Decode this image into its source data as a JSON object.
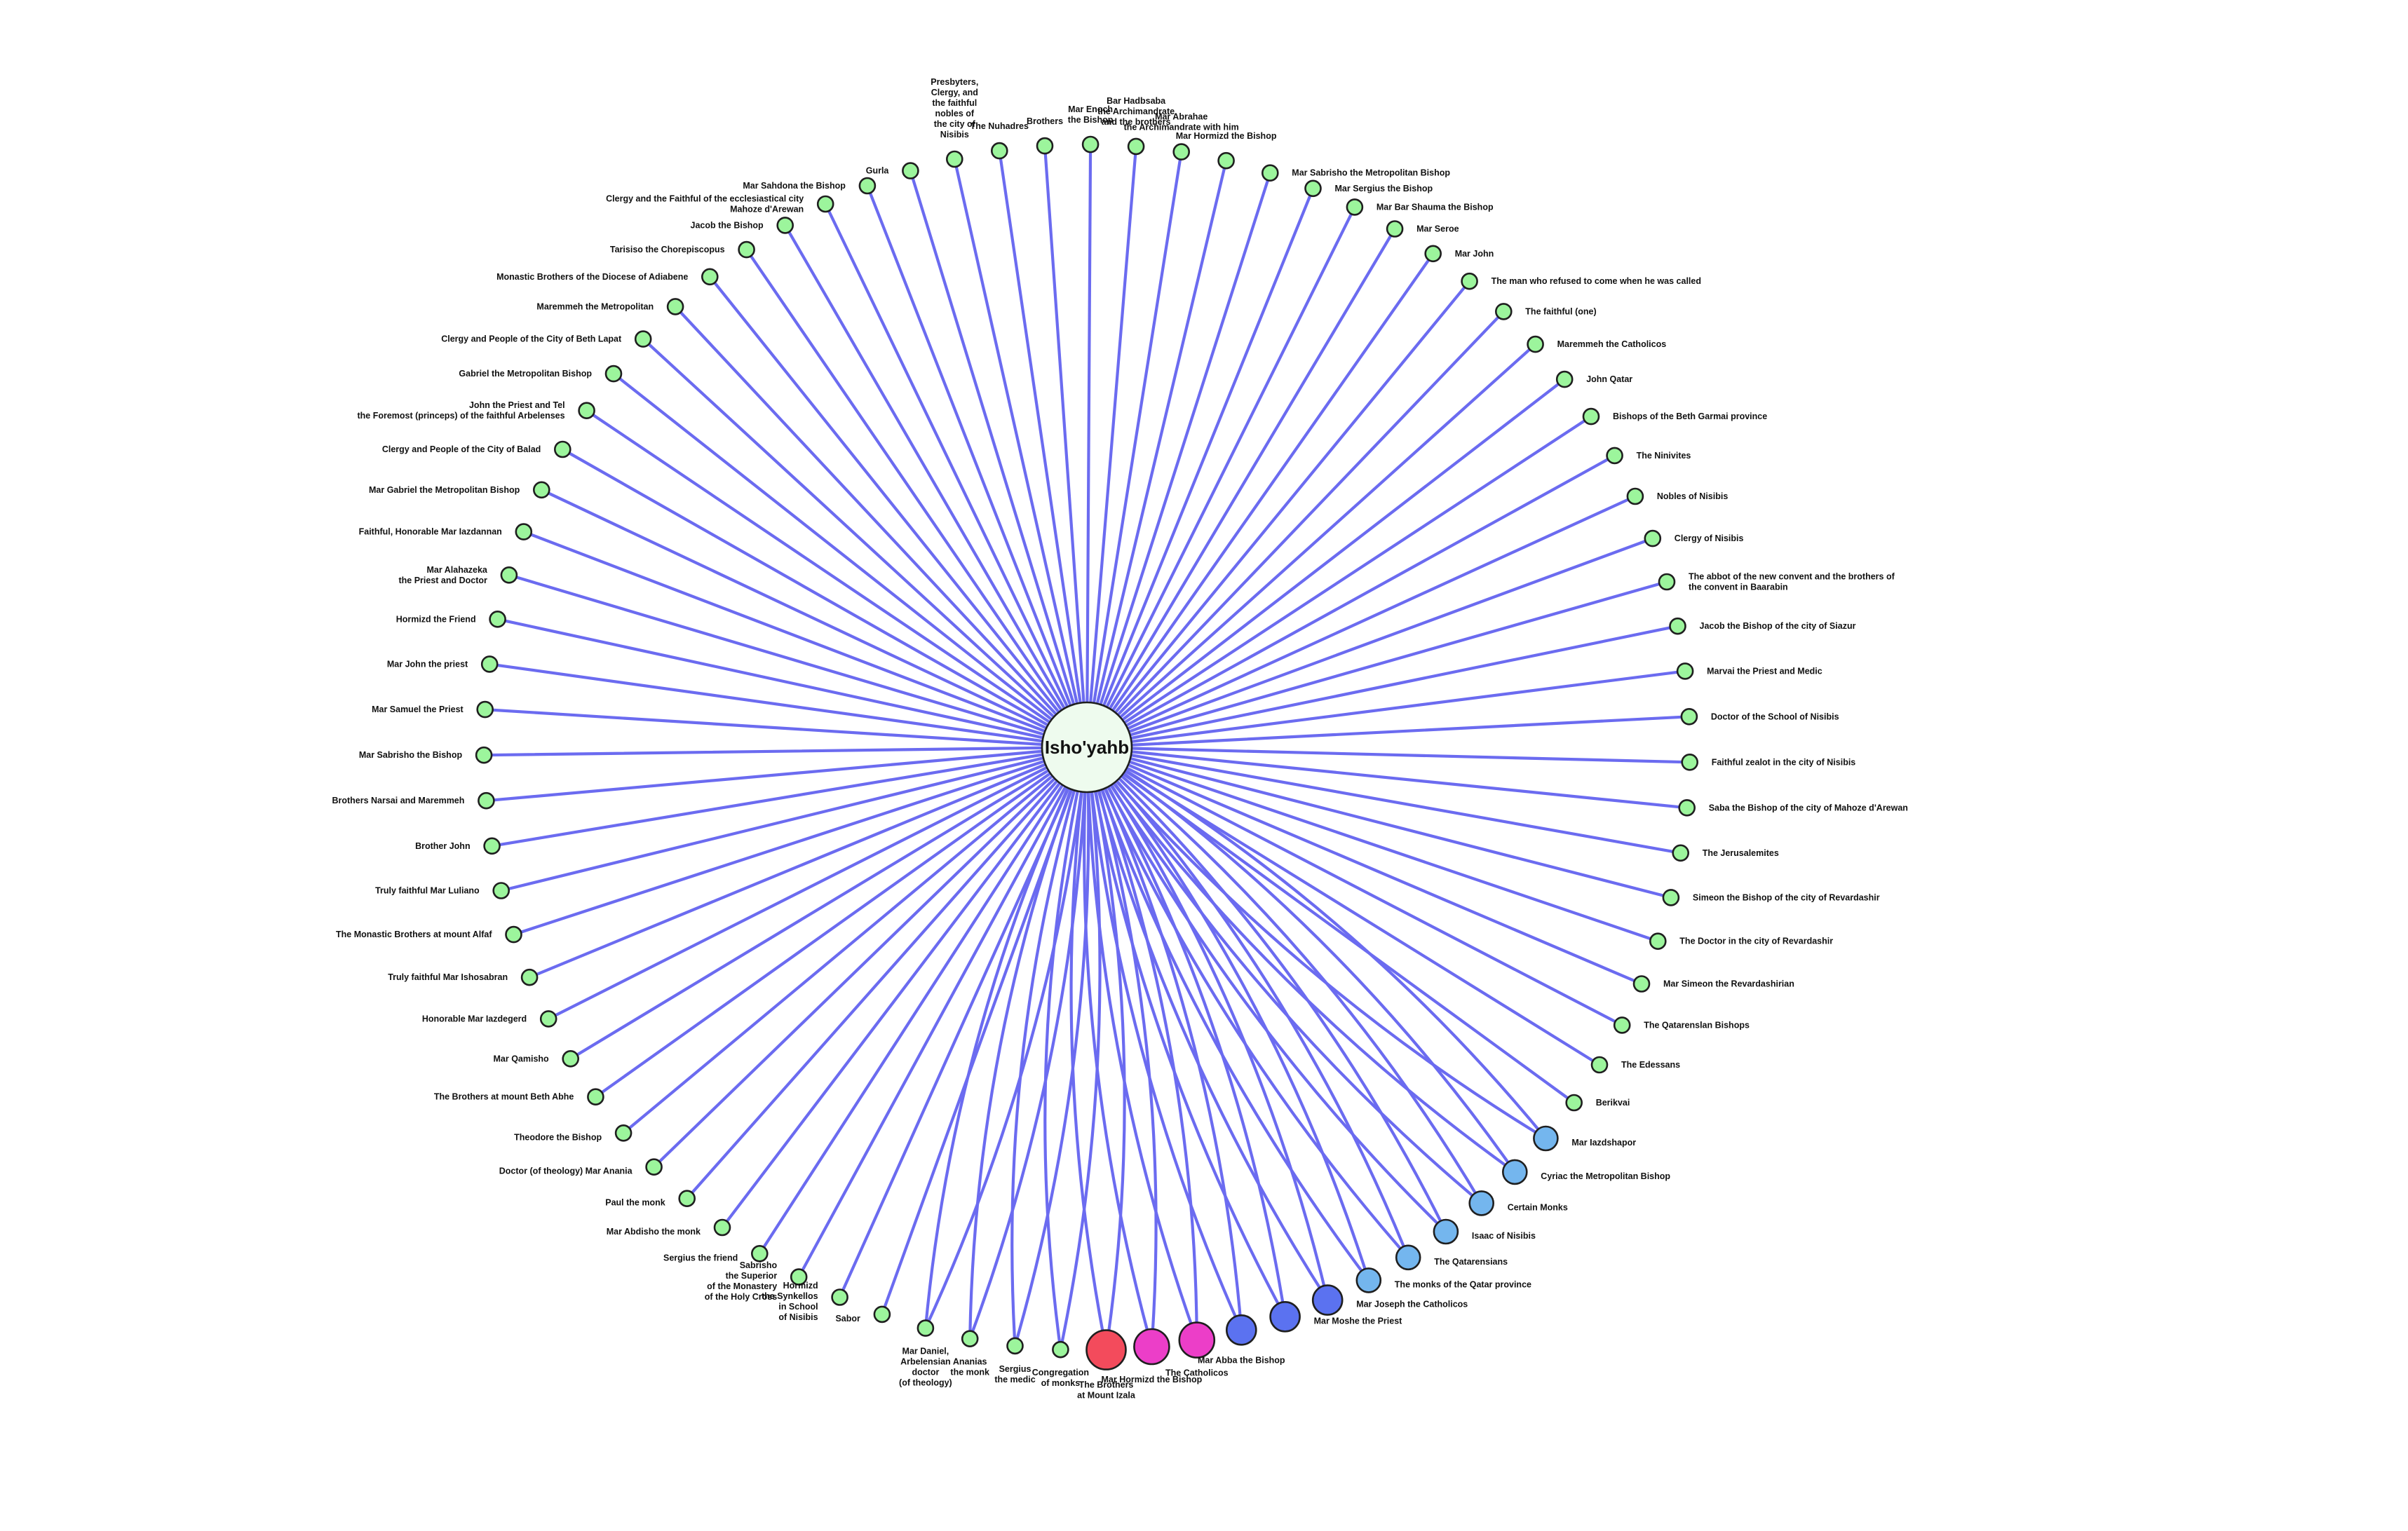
{
  "diagram": {
    "type": "radial-network",
    "colors": {
      "edge": "#6b6bf0",
      "center": "#eefbee",
      "green": "#9cf59c",
      "light_blue": "#74b6ee",
      "blue": "#5b72f0",
      "magenta": "#ec3ec8",
      "red": "#f34b5c"
    },
    "center": {
      "label": "Isho'yahb"
    },
    "nodes": [
      {
        "label": "Brothers",
        "color": "green",
        "lines": [
          "Brothers"
        ]
      },
      {
        "label": "Mar Enoch the Bishop",
        "color": "green",
        "lines": [
          "Mar Enoch",
          "the Bishop"
        ]
      },
      {
        "label": "Bar Hadbsaba the Archimandrate and the brothers",
        "color": "green",
        "lines": [
          "Bar Hadbsaba",
          "the Archimandrate",
          "and the brothers"
        ]
      },
      {
        "label": "Mar Abrahae the Archimandrate with him",
        "color": "green",
        "lines": [
          "Mar Abrahae",
          "the Archimandrate with him"
        ]
      },
      {
        "label": "Mar Hormizd the Bishop",
        "color": "green",
        "lines": [
          "Mar Hormizd the Bishop"
        ]
      },
      {
        "label": "Mar Sabrisho the Metropolitan Bishop",
        "color": "green",
        "lines": [
          "Mar Sabrisho the Metropolitan Bishop"
        ]
      },
      {
        "label": "Mar Sergius the Bishop",
        "color": "green",
        "lines": [
          "Mar Sergius the Bishop"
        ]
      },
      {
        "label": "Mar Bar Shauma the Bishop",
        "color": "green",
        "lines": [
          "Mar Bar Shauma the Bishop"
        ]
      },
      {
        "label": "Mar Seroe",
        "color": "green",
        "lines": [
          "Mar Seroe"
        ]
      },
      {
        "label": "Mar John",
        "color": "green",
        "lines": [
          "Mar John"
        ]
      },
      {
        "label": "The man who refused to come when he was called",
        "color": "green",
        "lines": [
          "The man who refused to come when he was called"
        ]
      },
      {
        "label": "The faithful (one)",
        "color": "green",
        "lines": [
          "The faithful (one)"
        ]
      },
      {
        "label": "Maremmeh the Catholicos",
        "color": "green",
        "lines": [
          "Maremmeh the Catholicos"
        ]
      },
      {
        "label": "John Qatar",
        "color": "green",
        "lines": [
          "John Qatar"
        ]
      },
      {
        "label": "Bishops of the Beth Garmai province",
        "color": "green",
        "lines": [
          "Bishops of the Beth Garmai province"
        ]
      },
      {
        "label": "The Ninivites",
        "color": "green",
        "lines": [
          "The Ninivites"
        ]
      },
      {
        "label": "Nobles of Nisibis",
        "color": "green",
        "lines": [
          "Nobles of Nisibis"
        ]
      },
      {
        "label": "Clergy of Nisibis",
        "color": "green",
        "lines": [
          "Clergy of Nisibis"
        ]
      },
      {
        "label": "The abbot of the new convent and the brothers of the convent in Baarabin",
        "color": "green",
        "lines": [
          "The abbot of the new convent and the brothers of",
          "the convent in Baarabin"
        ]
      },
      {
        "label": "Jacob the Bishop of the city of Siazur",
        "color": "green",
        "lines": [
          "Jacob the Bishop of the city of Siazur"
        ]
      },
      {
        "label": "Marvai the Priest and Medic",
        "color": "green",
        "lines": [
          "Marvai the Priest and Medic"
        ]
      },
      {
        "label": "Doctor of the School of Nisibis",
        "color": "green",
        "lines": [
          "Doctor of the School of Nisibis"
        ]
      },
      {
        "label": "Faithful zealot in the city of Nisibis",
        "color": "green",
        "lines": [
          "Faithful zealot in the city of Nisibis"
        ]
      },
      {
        "label": "Saba the Bishop of the city of Mahoze d'Arewan",
        "color": "green",
        "lines": [
          "Saba the Bishop of the city of Mahoze d'Arewan"
        ]
      },
      {
        "label": "The Jerusalemites",
        "color": "green",
        "lines": [
          "The Jerusalemites"
        ]
      },
      {
        "label": "Simeon the Bishop of the city of Revardashir",
        "color": "green",
        "lines": [
          "Simeon the Bishop of the city of Revardashir"
        ]
      },
      {
        "label": "The Doctor in the city of Revardashir",
        "color": "green",
        "lines": [
          "The Doctor in the city of Revardashir"
        ]
      },
      {
        "label": "Mar Simeon the Revardashirian",
        "color": "green",
        "lines": [
          "Mar Simeon the Revardashirian"
        ]
      },
      {
        "label": "The Qatarenslan Bishops",
        "color": "green",
        "lines": [
          "The Qatarenslan Bishops"
        ]
      },
      {
        "label": "The Edessans",
        "color": "green",
        "lines": [
          "The Edessans"
        ]
      },
      {
        "label": "Berikvai",
        "color": "green",
        "lines": [
          "Berikvai"
        ]
      },
      {
        "label": "Mar Iazdshapor",
        "color": "light_blue",
        "lines": [
          "Mar Iazdshapor"
        ]
      },
      {
        "label": "Cyriac the Metropolitan Bishop",
        "color": "light_blue",
        "lines": [
          "Cyriac the Metropolitan Bishop"
        ]
      },
      {
        "label": "Certain Monks",
        "color": "light_blue",
        "lines": [
          "Certain Monks"
        ]
      },
      {
        "label": "Isaac of Nisibis",
        "color": "light_blue",
        "lines": [
          "Isaac of Nisibis"
        ]
      },
      {
        "label": "The Qatarensians",
        "color": "light_blue",
        "lines": [
          "The Qatarensians"
        ]
      },
      {
        "label": "The monks of the Qatar province",
        "color": "light_blue",
        "lines": [
          "The monks of the Qatar province"
        ]
      },
      {
        "label": "Mar Joseph the Catholicos",
        "color": "blue",
        "lines": [
          "Mar Joseph the Catholicos"
        ]
      },
      {
        "label": "Mar Moshe the Priest",
        "color": "blue",
        "lines": [
          "Mar Moshe the Priest"
        ]
      },
      {
        "label": "Mar Abba the Bishop",
        "color": "blue",
        "lines": [
          "Mar Abba the Bishop"
        ]
      },
      {
        "label": "The Catholicos",
        "color": "magenta",
        "lines": [
          "The Catholicos"
        ]
      },
      {
        "label": "Mar Hormizd the Bishop",
        "color": "magenta",
        "lines": [
          "Mar Hormizd the Bishop"
        ]
      },
      {
        "label": "The Brothers at Mount Izala",
        "color": "red",
        "lines": [
          "The Brothers",
          "at Mount Izala"
        ]
      },
      {
        "label": "Congregation of monks",
        "color": "green",
        "lines": [
          "Congregation",
          "of monks"
        ]
      },
      {
        "label": "Sergius the medic",
        "color": "green",
        "lines": [
          "Sergius",
          "the medic"
        ]
      },
      {
        "label": "Ananias the monk",
        "color": "green",
        "lines": [
          "Ananias",
          "the monk"
        ]
      },
      {
        "label": "Mar Daniel, Arbelensian doctor (of theology)",
        "color": "green",
        "lines": [
          "Mar Daniel,",
          "Arbelensian",
          "doctor",
          "(of theology)"
        ]
      },
      {
        "label": "Sabor",
        "color": "green",
        "lines": [
          "Sabor"
        ]
      },
      {
        "label": "Hormizd the Synkellos in School of Nisibis",
        "color": "green",
        "lines": [
          "Hormizd",
          "the Synkellos",
          "in School",
          "of Nisibis"
        ]
      },
      {
        "label": "Sabrisho the Superior of the Monastery of the Holy Cross",
        "color": "green",
        "lines": [
          "Sabrisho",
          "the Superior",
          "of the Monastery",
          "of the Holy Cross"
        ]
      },
      {
        "label": "Sergius the friend",
        "color": "green",
        "lines": [
          "Sergius the friend"
        ]
      },
      {
        "label": "Mar Abdisho the monk",
        "color": "green",
        "lines": [
          "Mar Abdisho the monk"
        ]
      },
      {
        "label": "Paul the monk",
        "color": "green",
        "lines": [
          "Paul the monk"
        ]
      },
      {
        "label": "Doctor (of theology) Mar Anania",
        "color": "green",
        "lines": [
          "Doctor (of theology) Mar Anania"
        ]
      },
      {
        "label": "Theodore the Bishop",
        "color": "green",
        "lines": [
          "Theodore the Bishop"
        ]
      },
      {
        "label": "The Brothers at mount Beth Abhe",
        "color": "green",
        "lines": [
          "The Brothers at mount Beth Abhe"
        ]
      },
      {
        "label": "Mar Qamisho",
        "color": "green",
        "lines": [
          "Mar Qamisho"
        ]
      },
      {
        "label": "Honorable Mar Iazdegerd",
        "color": "green",
        "lines": [
          "Honorable Mar Iazdegerd"
        ]
      },
      {
        "label": "Truly faithful Mar Ishosabran",
        "color": "green",
        "lines": [
          "Truly faithful Mar Ishosabran"
        ]
      },
      {
        "label": "The Monastic Brothers at mount Alfaf",
        "color": "green",
        "lines": [
          "The Monastic Brothers at mount Alfaf"
        ]
      },
      {
        "label": "Truly faithful Mar Luliano",
        "color": "green",
        "lines": [
          "Truly faithful Mar Luliano"
        ]
      },
      {
        "label": "Brother John",
        "color": "green",
        "lines": [
          "Brother John"
        ]
      },
      {
        "label": "Brothers Narsai and Maremmeh",
        "color": "green",
        "lines": [
          "Brothers Narsai and Maremmeh"
        ]
      },
      {
        "label": "Mar Sabrisho the Bishop",
        "color": "green",
        "lines": [
          "Mar Sabrisho the Bishop"
        ]
      },
      {
        "label": "Mar Samuel the Priest",
        "color": "green",
        "lines": [
          "Mar Samuel the Priest"
        ]
      },
      {
        "label": "Mar John the priest",
        "color": "green",
        "lines": [
          "Mar John the priest"
        ]
      },
      {
        "label": "Hormizd the Friend",
        "color": "green",
        "lines": [
          "Hormizd the Friend"
        ]
      },
      {
        "label": "Mar Alahazeka the Priest and Doctor",
        "color": "green",
        "lines": [
          "Mar Alahazeka",
          "the Priest and Doctor"
        ]
      },
      {
        "label": "Faithful, Honorable Mar Iazdannan",
        "color": "green",
        "lines": [
          "Faithful, Honorable Mar Iazdannan"
        ]
      },
      {
        "label": "Mar Gabriel the Metropolitan Bishop",
        "color": "green",
        "lines": [
          "Mar Gabriel the Metropolitan Bishop"
        ]
      },
      {
        "label": "Clergy and People of the City of Balad",
        "color": "green",
        "lines": [
          "Clergy and People of the City of Balad"
        ]
      },
      {
        "label": "John the Priest and Tel the Foremost (princeps) of the faithful Arbelenses",
        "color": "green",
        "lines": [
          "John the Priest and Tel",
          "the Foremost (princeps) of the faithful Arbelenses"
        ]
      },
      {
        "label": "Gabriel the Metropolitan Bishop",
        "color": "green",
        "lines": [
          "Gabriel the Metropolitan Bishop"
        ]
      },
      {
        "label": "Clergy and People of the City of Beth Lapat",
        "color": "green",
        "lines": [
          "Clergy and People of the City of Beth Lapat"
        ]
      },
      {
        "label": "Maremmeh the Metropolitan",
        "color": "green",
        "lines": [
          "Maremmeh the Metropolitan"
        ]
      },
      {
        "label": "Monastic Brothers of the Diocese of Adiabene",
        "color": "green",
        "lines": [
          "Monastic Brothers of the Diocese of Adiabene"
        ]
      },
      {
        "label": "Tarisiso the Chorepiscopus",
        "color": "green",
        "lines": [
          "Tarisiso the Chorepiscopus"
        ]
      },
      {
        "label": "Jacob the Bishop",
        "color": "green",
        "lines": [
          "Jacob the Bishop"
        ]
      },
      {
        "label": "Clergy and the Faithful of the ecclesiastical city Mahoze d'Arewan",
        "color": "green",
        "lines": [
          "Clergy and the Faithful of the ecclesiastical city",
          "Mahoze d'Arewan"
        ]
      },
      {
        "label": "Mar Sahdona the Bishop",
        "color": "green",
        "lines": [
          "Mar Sahdona the Bishop"
        ]
      },
      {
        "label": "Gurla",
        "color": "green",
        "lines": [
          "Gurla"
        ]
      },
      {
        "label": "Presbyters, Clergy, and the faithful nobles of the city of Nisibis",
        "color": "green",
        "lines": [
          "Presbyters,",
          "Clergy, and",
          "the faithful",
          "nobles of",
          "the city of",
          "Nisibis"
        ]
      },
      {
        "label": "The Nuhadres",
        "color": "green",
        "lines": [
          "The Nuhadres"
        ]
      }
    ]
  }
}
